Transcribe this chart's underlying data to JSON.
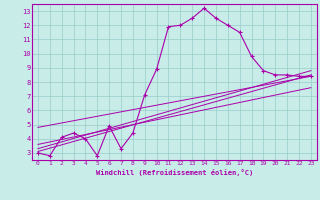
{
  "title": "",
  "xlabel": "Windchill (Refroidissement éolien,°C)",
  "ylabel": "",
  "bg_color": "#c8ece8",
  "line_color": "#aa00aa",
  "grid_color": "#99cccc",
  "xlim": [
    -0.5,
    23.5
  ],
  "ylim": [
    2.5,
    13.5
  ],
  "xticks": [
    0,
    1,
    2,
    3,
    4,
    5,
    6,
    7,
    8,
    9,
    10,
    11,
    12,
    13,
    14,
    15,
    16,
    17,
    18,
    19,
    20,
    21,
    22,
    23
  ],
  "yticks": [
    3,
    4,
    5,
    6,
    7,
    8,
    9,
    10,
    11,
    12,
    13
  ],
  "main_series_x": [
    0,
    1,
    2,
    3,
    4,
    5,
    6,
    7,
    8,
    9,
    10,
    11,
    12,
    13,
    14,
    15,
    16,
    17,
    18,
    19,
    20,
    21,
    22,
    23
  ],
  "main_series_y": [
    3.0,
    2.8,
    4.1,
    4.4,
    4.0,
    2.8,
    4.9,
    3.3,
    4.4,
    7.1,
    8.9,
    11.9,
    12.0,
    12.5,
    13.2,
    12.5,
    12.0,
    11.5,
    9.8,
    8.8,
    8.5,
    8.5,
    8.4,
    8.4
  ],
  "line1_x": [
    0,
    23
  ],
  "line1_y": [
    3.1,
    8.5
  ],
  "line2_x": [
    0,
    23
  ],
  "line2_y": [
    3.3,
    8.8
  ],
  "line3_x": [
    0,
    23
  ],
  "line3_y": [
    3.6,
    7.6
  ],
  "line4_x": [
    0,
    23
  ],
  "line4_y": [
    4.8,
    8.4
  ]
}
